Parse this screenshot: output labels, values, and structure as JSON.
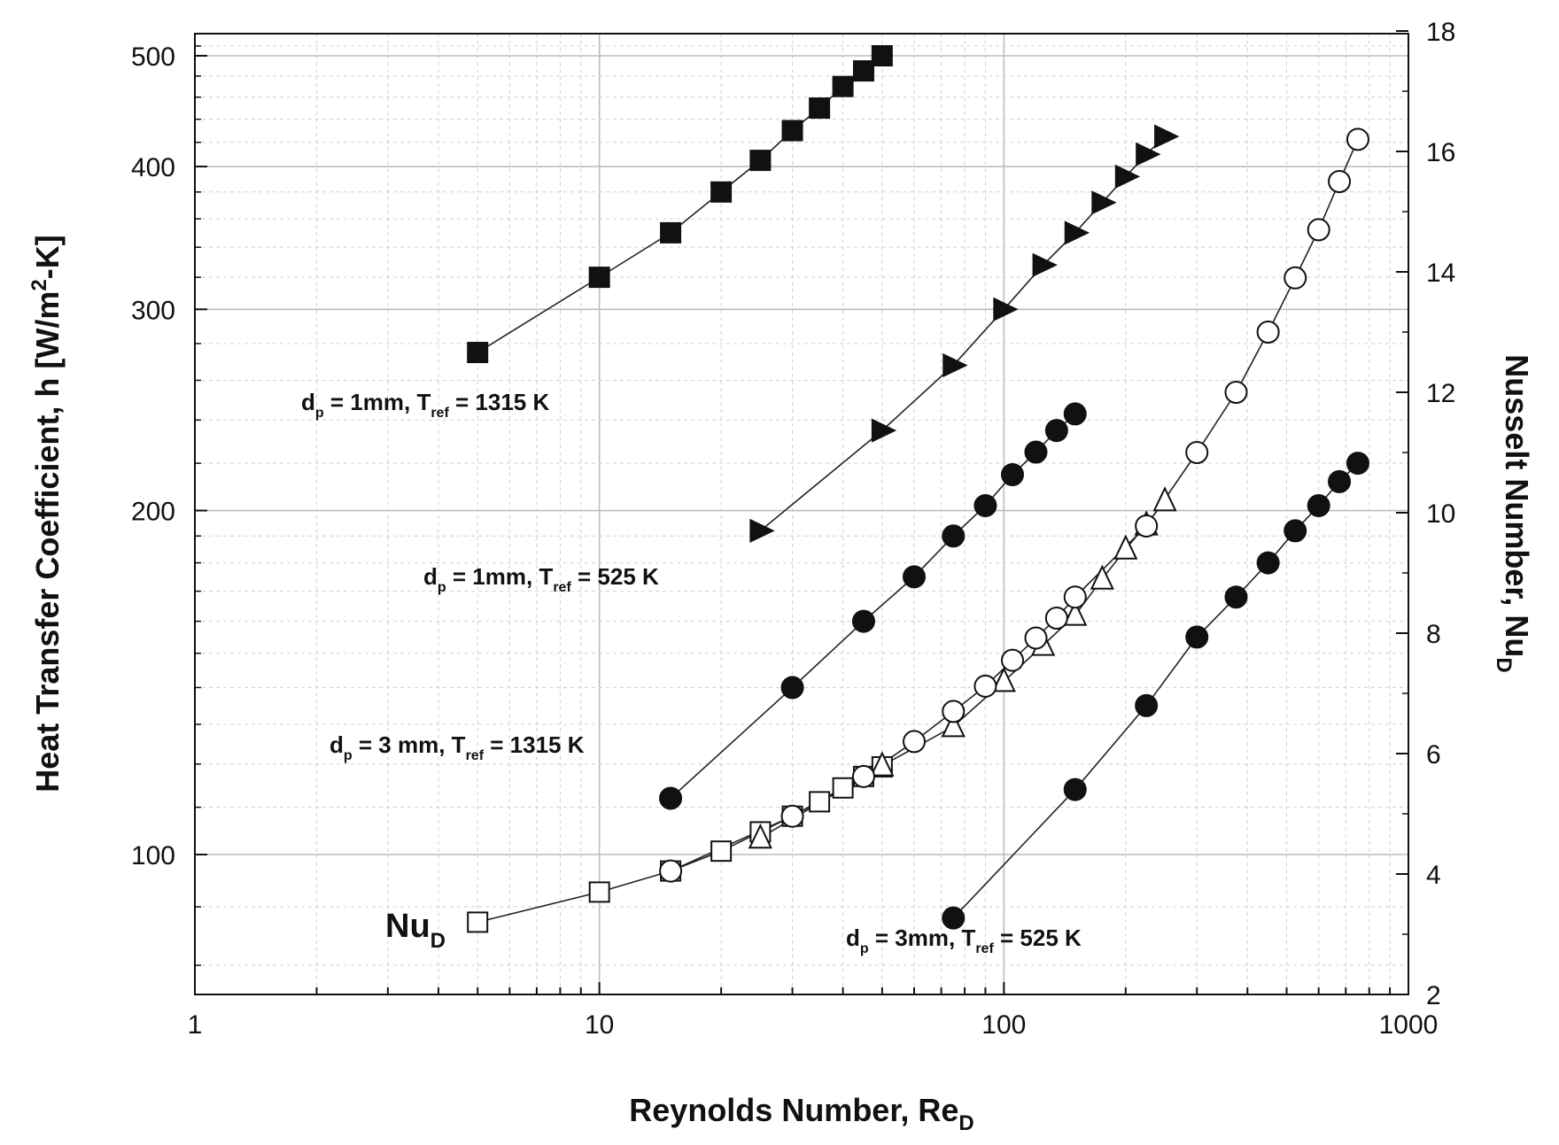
{
  "chart_data": {
    "type": "scatter",
    "x_axis": {
      "label": "Reynolds Number, Re",
      "label_sub": "D",
      "scale": "log",
      "range": [
        1,
        1000
      ],
      "ticks": [
        1,
        10,
        100,
        1000
      ],
      "tick_labels": [
        "1",
        "10",
        "100",
        "1000"
      ]
    },
    "y_axis_left": {
      "label_main": "Heat Transfer Coefficient, h [W/m",
      "label_sup": "2",
      "label_end": "-K]",
      "scale": "log",
      "range": [
        80,
        520
      ],
      "ticks": [
        100,
        200,
        300,
        400,
        500
      ],
      "tick_labels": [
        "100",
        "200",
        "300",
        "400",
        "500"
      ]
    },
    "y_axis_right": {
      "label": "Nusselt Number, Nu",
      "label_sub": "D",
      "scale": "linear",
      "range": [
        2,
        18
      ],
      "ticks": [
        2,
        4,
        6,
        8,
        10,
        12,
        14,
        16,
        18
      ],
      "tick_labels": [
        "2",
        "4",
        "6",
        "8",
        "10",
        "12",
        "14",
        "16",
        "18"
      ]
    },
    "grid": true,
    "series": [
      {
        "axis": "left",
        "marker": "square",
        "filled": true,
        "x": [
          5,
          10,
          15,
          20,
          25,
          30,
          35,
          40,
          45,
          50
        ],
        "y": [
          275,
          320,
          350,
          380,
          405,
          430,
          450,
          470,
          485,
          500
        ]
      },
      {
        "axis": "left",
        "marker": "triangle-right",
        "filled": true,
        "x": [
          25,
          50,
          75,
          100,
          125,
          150,
          175,
          200,
          225,
          250
        ],
        "y": [
          192,
          235,
          268,
          300,
          328,
          350,
          372,
          392,
          410,
          425
        ]
      },
      {
        "axis": "left",
        "marker": "circle",
        "filled": true,
        "x": [
          15,
          30,
          45,
          60,
          75,
          90,
          105,
          120,
          135,
          150
        ],
        "y": [
          112,
          140,
          160,
          175,
          190,
          202,
          215,
          225,
          235,
          243
        ]
      },
      {
        "axis": "left",
        "marker": "circle",
        "filled": true,
        "x": [
          75,
          150,
          225,
          300,
          375,
          450,
          525,
          600,
          675,
          750
        ],
        "y": [
          88,
          114,
          135,
          155,
          168,
          180,
          192,
          202,
          212,
          220
        ]
      },
      {
        "axis": "right",
        "marker": "square",
        "filled": false,
        "x": [
          5,
          10,
          15,
          20,
          25,
          30,
          35,
          40,
          45,
          50
        ],
        "y": [
          3.2,
          3.7,
          4.05,
          4.38,
          4.7,
          4.96,
          5.2,
          5.43,
          5.62,
          5.78
        ]
      },
      {
        "axis": "right",
        "marker": "triangle-up",
        "filled": false,
        "x": [
          25,
          50,
          75,
          100,
          125,
          150,
          175,
          200,
          225,
          250
        ],
        "y": [
          4.6,
          5.8,
          6.45,
          7.2,
          7.8,
          8.3,
          8.9,
          9.4,
          9.8,
          10.2
        ]
      },
      {
        "axis": "right",
        "marker": "circle",
        "filled": false,
        "x": [
          15,
          30,
          45,
          60,
          75,
          90,
          105,
          120,
          135,
          150,
          225,
          300,
          375,
          450,
          525,
          600,
          675,
          750
        ],
        "y": [
          4.05,
          4.96,
          5.62,
          6.2,
          6.7,
          7.12,
          7.55,
          7.92,
          8.25,
          8.6,
          9.78,
          11.0,
          12.0,
          13.0,
          13.9,
          14.7,
          15.5,
          16.2
        ]
      }
    ],
    "annotations": [
      {
        "pre": "d",
        "pre_sub": "p",
        "mid": " = 1mm, T",
        "mid_sub": "ref",
        "post": " = 1315 K"
      },
      {
        "pre": "d",
        "pre_sub": "p",
        "mid": " = 1mm, T",
        "mid_sub": "ref",
        "post": " = 525 K"
      },
      {
        "pre": "d",
        "pre_sub": "p",
        "mid": " = 3 mm, T",
        "mid_sub": "ref",
        "post": " = 1315 K"
      },
      {
        "pre": "d",
        "pre_sub": "p",
        "mid": " = 3mm, T",
        "mid_sub": "ref",
        "post": " = 525 K"
      },
      {
        "pre": "Nu",
        "pre_sub": "D",
        "mid": "",
        "mid_sub": "",
        "post": ""
      }
    ]
  }
}
